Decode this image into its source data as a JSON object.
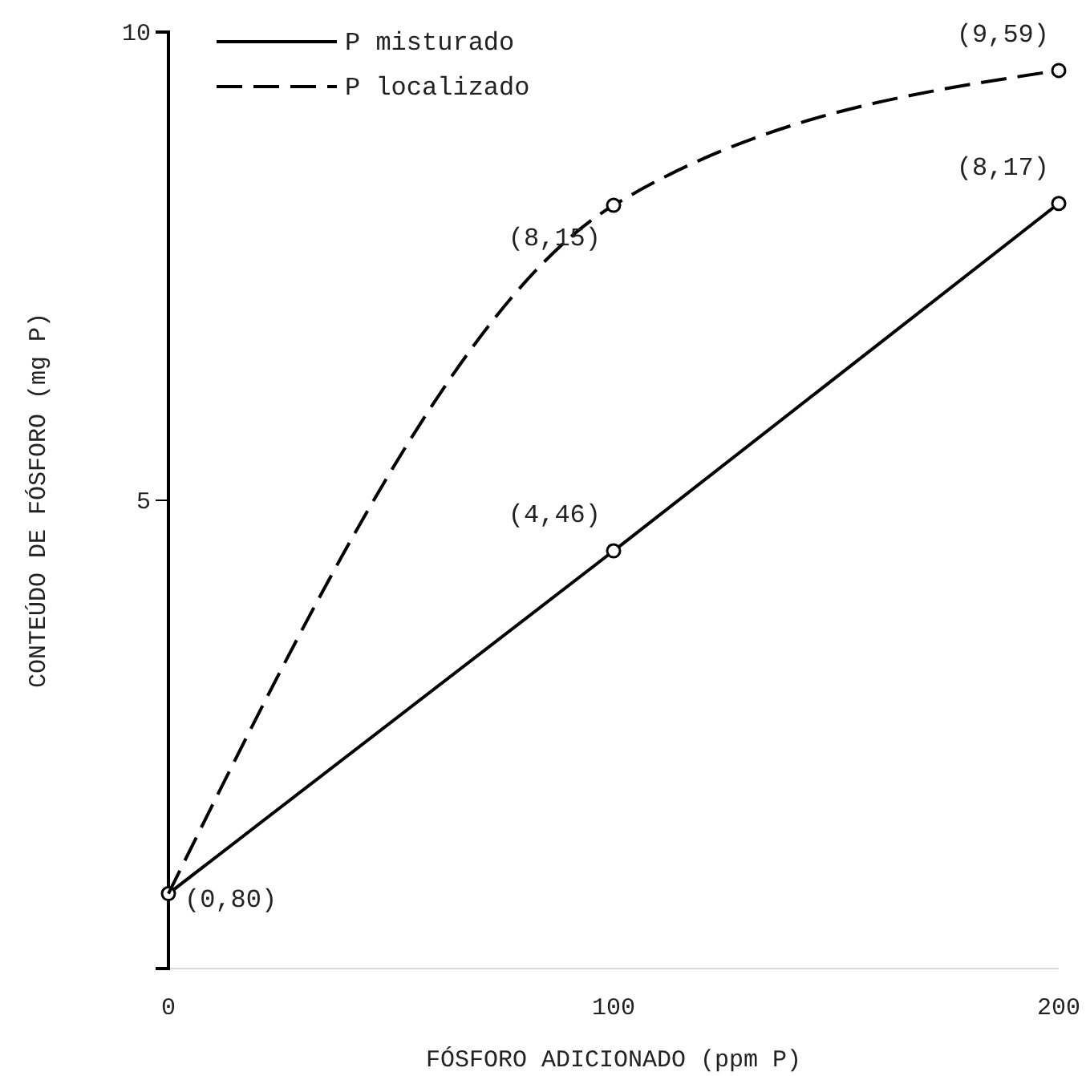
{
  "chart_data": {
    "type": "line",
    "xlabel": "FÓSFORO ADICIONADO (ppm P)",
    "ylabel": "CONTEÚDO DE FÓSFORO (mg P)",
    "x": [
      0,
      100,
      200
    ],
    "xlim": [
      0,
      200
    ],
    "xticks": [
      0,
      100,
      200
    ],
    "ylim": [
      0,
      10
    ],
    "yticks": [
      5,
      10
    ],
    "legend": "top left",
    "marker": "circle",
    "grid": false,
    "series": [
      {
        "name": "P misturado",
        "color": "#000000",
        "line_style": "solid",
        "values": [
          0.8,
          4.46,
          8.17
        ],
        "value_labels": [
          "(0,80)",
          "(4,46)",
          "(8,17)"
        ]
      },
      {
        "name": "P localizado",
        "color": "#000000",
        "line_style": "dashed",
        "values": [
          0.8,
          8.15,
          9.59
        ],
        "value_labels": [
          null,
          "(8,15)",
          "(9,59)"
        ]
      }
    ]
  }
}
